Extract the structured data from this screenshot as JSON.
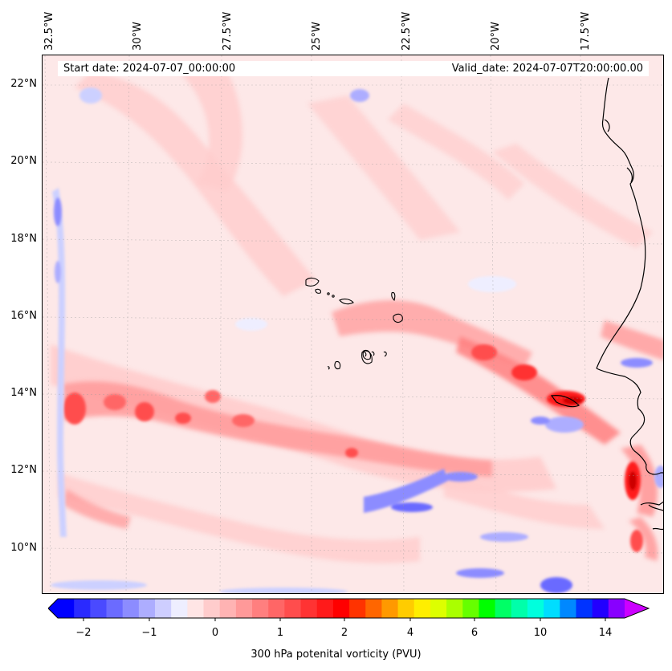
{
  "map": {
    "lon_labels": [
      "32.5°W",
      "30°W",
      "27.5°W",
      "25°W",
      "22.5°W",
      "20°W",
      "17.5°W"
    ],
    "lat_labels": [
      "22°N",
      "20°N",
      "18°N",
      "16°N",
      "14°N",
      "12°N",
      "10°N"
    ],
    "start_date": "Start date: 2024-07-07_00:00:00",
    "valid_date": "Valid_date: 2024-07-07T20:00:00.00",
    "field": "300 hPa potential vorticity",
    "background_color": "#fde8e8",
    "coastline_color": "#000000"
  },
  "colorbar": {
    "tick_labels": [
      "−2",
      "−1",
      "0",
      "1",
      "2",
      "4",
      "6",
      "10",
      "14"
    ],
    "label": "300 hPa potenital vorticity (PVU)",
    "extend": "both",
    "colors": [
      "#0000ff",
      "#2a2aff",
      "#4a4aff",
      "#6b6bff",
      "#8c8cff",
      "#adadff",
      "#ceceff",
      "#eeeeff",
      "#ffe5e5",
      "#ffcccc",
      "#ffb3b3",
      "#ff9999",
      "#ff7f7f",
      "#ff6666",
      "#ff4d4d",
      "#ff3333",
      "#ff1a1a",
      "#ff0000",
      "#ff3300",
      "#ff6600",
      "#ff9900",
      "#ffcc00",
      "#ffee00",
      "#ddff00",
      "#aaff00",
      "#66ff00",
      "#00ff00",
      "#00ff66",
      "#00ffaa",
      "#00ffdd",
      "#00ddff",
      "#0088ff",
      "#0033ff",
      "#2200ff",
      "#8800ff"
    ],
    "extend_min_color": "#0000ff",
    "extend_max_color": "#cc00ff"
  }
}
